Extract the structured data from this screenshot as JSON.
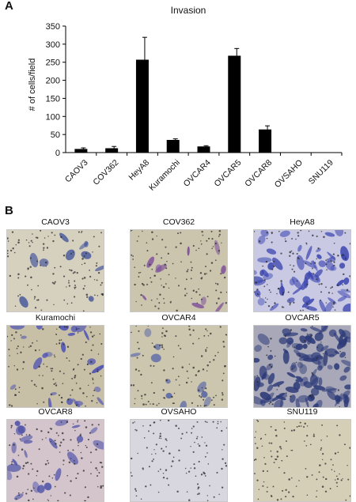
{
  "panels": {
    "a_label": "A",
    "b_label": "B"
  },
  "chart_data": {
    "type": "bar",
    "title": "Invasion",
    "ylabel": "# of cells/field",
    "xlabel": "",
    "ylim": [
      0,
      350
    ],
    "yticks": [
      0,
      50,
      100,
      150,
      200,
      250,
      300,
      350
    ],
    "categories": [
      "CAOV3",
      "COV362",
      "HeyA8",
      "Kuramochi",
      "OVCAR4",
      "OVCAR5",
      "OVCAR8",
      "OVSAHO",
      "SNU119"
    ],
    "values": [
      10,
      12,
      257,
      35,
      17,
      268,
      64,
      0,
      0
    ],
    "errors": [
      3,
      5,
      62,
      3,
      2,
      20,
      10,
      0,
      0
    ],
    "bar_color": "#000000",
    "grid": false,
    "legend": "none"
  },
  "micrographs": [
    {
      "label": "CAOV3",
      "bg": "#d6d0be",
      "stain": "#3c4f9a",
      "density": "sparse"
    },
    {
      "label": "COV362",
      "bg": "#cbc5ad",
      "stain": "#7a4a9a",
      "density": "sparse"
    },
    {
      "label": "HeyA8",
      "bg": "#c9c9e4",
      "stain": "#3d47b0",
      "density": "dense"
    },
    {
      "label": "Kuramochi",
      "bg": "#c8c0a6",
      "stain": "#4a4fb5",
      "density": "moderate"
    },
    {
      "label": "OVCAR4",
      "bg": "#cbc6ad",
      "stain": "#4a5aa8",
      "density": "sparse"
    },
    {
      "label": "OVCAR5",
      "bg": "#a9a8b8",
      "stain": "#2c3a78",
      "density": "confluent"
    },
    {
      "label": "OVCAR8",
      "bg": "#d4c4cc",
      "stain": "#4a4fa8",
      "density": "moderate"
    },
    {
      "label": "OVSAHO",
      "bg": "#d8d6de",
      "stain": "#8a8cb0",
      "density": "none"
    },
    {
      "label": "SNU119",
      "bg": "#d6cfb8",
      "stain": "#8a8470",
      "density": "none"
    }
  ]
}
